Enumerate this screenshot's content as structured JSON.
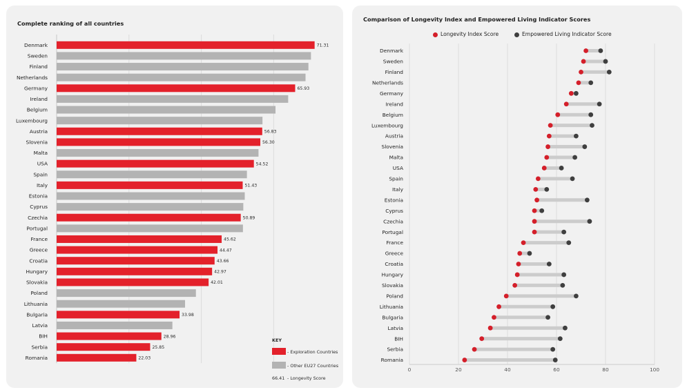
{
  "colors": {
    "exploration": "#e3212b",
    "other": "#b3b3b3",
    "longevity": "#d41f2a",
    "empowered": "#3f3f3f",
    "connector": "#cccccc"
  },
  "left": {
    "title": "Complete ranking of all countries",
    "key": {
      "title": "KEY",
      "exploration_label": "- Exploration Countries",
      "other_label": "- Other EU27 Countries",
      "score_example": "66.41",
      "score_label": "- Longevity Score"
    }
  },
  "right": {
    "title": "Comparison of Longevity Index and Empowered Living Indicator Scores",
    "legend": {
      "longevity": "Longevity Index Score",
      "empowered": "Empowered Living Indicator Score"
    }
  },
  "chart_data": [
    {
      "type": "bar",
      "orientation": "horizontal",
      "title": "Complete ranking of all countries",
      "xlim": [
        0,
        75
      ],
      "categories": [
        "Denmark",
        "Sweden",
        "Finland",
        "Netherlands",
        "Germany",
        "Ireland",
        "Belgium",
        "Luxembourg",
        "Austria",
        "Slovenia",
        "Malta",
        "USA",
        "Spain",
        "Italy",
        "Estonia",
        "Cyprus",
        "Czechia",
        "Portugal",
        "France",
        "Greece",
        "Croatia",
        "Hungary",
        "Slovakia",
        "Poland",
        "Lithuania",
        "Bulgaria",
        "Latvia",
        "BIH",
        "Serbia",
        "Romania"
      ],
      "values": [
        71.31,
        70.3,
        69.6,
        68.8,
        65.93,
        64.0,
        60.5,
        56.9,
        56.83,
        56.3,
        55.8,
        54.52,
        52.6,
        51.43,
        52.0,
        51.6,
        50.89,
        51.5,
        45.62,
        44.47,
        43.66,
        42.97,
        42.01,
        38.5,
        35.5,
        33.98,
        32.0,
        28.96,
        25.85,
        22.03
      ],
      "exploration": [
        true,
        false,
        false,
        false,
        true,
        false,
        false,
        false,
        true,
        true,
        false,
        true,
        false,
        true,
        false,
        false,
        true,
        false,
        true,
        true,
        true,
        true,
        true,
        false,
        false,
        true,
        false,
        true,
        true,
        true
      ],
      "labels": [
        "71.31",
        "",
        "",
        "",
        "65.93",
        "",
        "",
        "",
        "56.83",
        "56.30",
        "",
        "54.52",
        "",
        "51.43",
        "",
        "",
        "50.89",
        "",
        "45.62",
        "44.47",
        "43.66",
        "42.97",
        "42.01",
        "",
        "",
        "33.98",
        "",
        "28.96",
        "25.85",
        "22.03"
      ]
    },
    {
      "type": "dumbbell",
      "title": "Comparison of Longevity Index and Empowered Living Indicator Scores",
      "xlim": [
        0,
        100
      ],
      "xticks": [
        0,
        20,
        40,
        60,
        80,
        100
      ],
      "categories": [
        "Denmark",
        "Sweden",
        "Finland",
        "Netherlands",
        "Germany",
        "Ireland",
        "Belgium",
        "Luxembourg",
        "Austria",
        "Slovenia",
        "Malta",
        "USA",
        "Spain",
        "Italy",
        "Estonia",
        "Cyprus",
        "Czechia",
        "Portugal",
        "France",
        "Greece",
        "Croatia",
        "Hungary",
        "Slovakia",
        "Poland",
        "Lithuania",
        "Bulgaria",
        "Latvia",
        "BIH",
        "Serbia",
        "Romania"
      ],
      "series": [
        {
          "name": "Longevity Index Score",
          "values": [
            72,
            71,
            70,
            69,
            66,
            64,
            60.5,
            57.5,
            57,
            56.5,
            56,
            55,
            52.5,
            51.5,
            52,
            51,
            51,
            51,
            46.5,
            45,
            44.5,
            44,
            43,
            39.5,
            36.5,
            34.5,
            33,
            29.5,
            26.5,
            22.5
          ]
        },
        {
          "name": "Empowered Living Indicator Score",
          "values": [
            78,
            80,
            81.5,
            74,
            68,
            77.5,
            74,
            74.5,
            68,
            71.5,
            67.5,
            62,
            66.5,
            56,
            72.5,
            54,
            73.5,
            63,
            65,
            49,
            57,
            63,
            62.5,
            68,
            58.5,
            56.5,
            63.5,
            61.5,
            58.5,
            59.5
          ]
        }
      ]
    }
  ]
}
